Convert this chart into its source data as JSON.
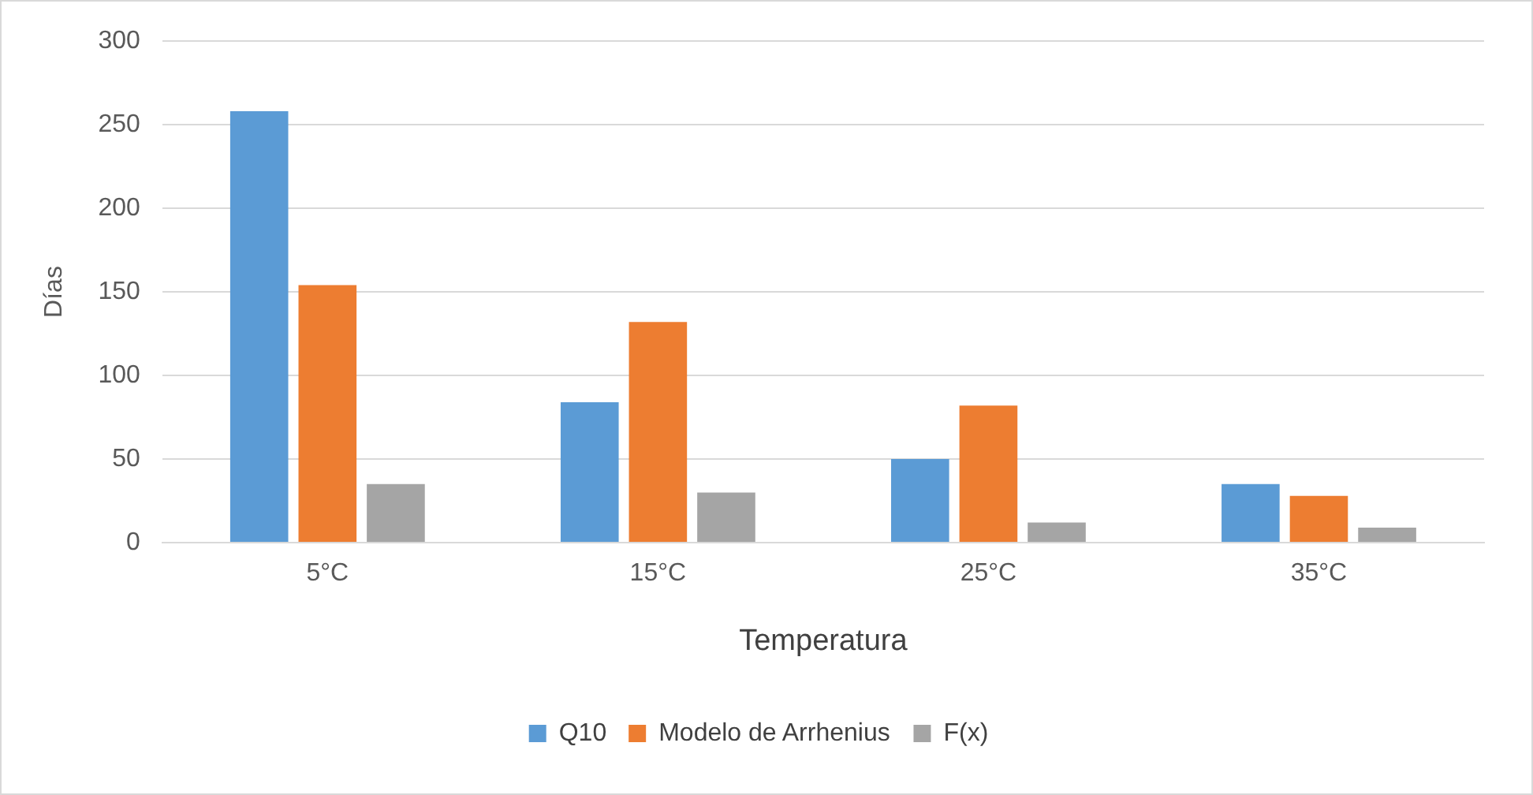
{
  "chart_data": {
    "type": "bar",
    "xlabel": "Temperatura",
    "ylabel": "Días",
    "categories": [
      "5°C",
      "15°C",
      "25°C",
      "35°C"
    ],
    "series": [
      {
        "name": "Q10",
        "color": "#5b9bd5",
        "values": [
          258,
          84,
          50,
          35
        ]
      },
      {
        "name": "Modelo de Arrhenius",
        "color": "#ed7d31",
        "values": [
          154,
          132,
          82,
          28
        ]
      },
      {
        "name": "F(x)",
        "color": "#a5a5a5",
        "values": [
          35,
          30,
          12,
          9
        ]
      }
    ],
    "ylim": [
      0,
      300
    ],
    "yticks": [
      0,
      50,
      100,
      150,
      200,
      250,
      300
    ],
    "grid": "y",
    "legend": "bottom"
  }
}
